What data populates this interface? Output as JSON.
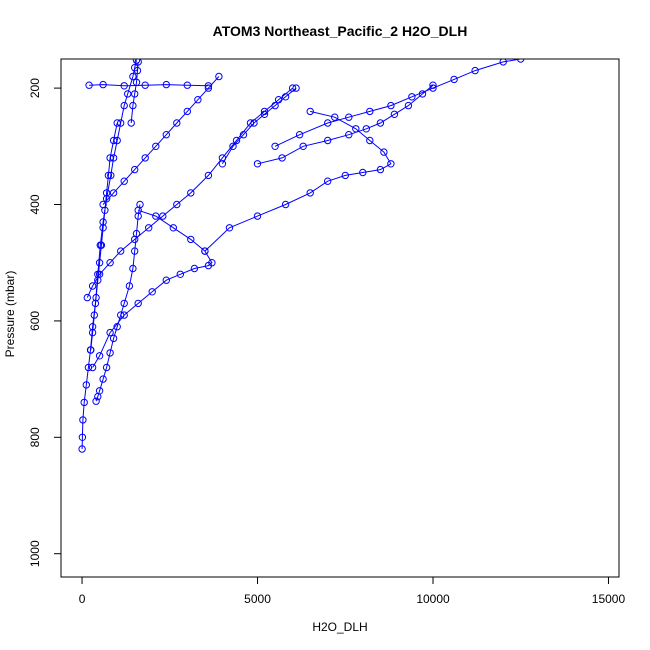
{
  "chart_data": {
    "type": "scatter",
    "title": "ATOM3 Northeast_Pacific_2 H2O_DLH",
    "xlabel": "H2O_DLH",
    "ylabel": "Pressure (mbar)",
    "xlim": [
      -600,
      15300
    ],
    "ylim": [
      1040,
      150
    ],
    "y_reversed": true,
    "grid": false,
    "xticks": [
      0,
      5000,
      10000,
      15000
    ],
    "yticks": [
      200,
      400,
      600,
      800,
      1000
    ],
    "series_color": "#0000ff",
    "marker": "open-circle",
    "connected": true,
    "series": [
      {
        "x": [
          0,
          10,
          25,
          60,
          120,
          180,
          240,
          300,
          380,
          450,
          520,
          600,
          700,
          820,
          900,
          1000,
          1100,
          1200,
          1300,
          1450,
          1500,
          1550
        ],
        "y": [
          820,
          800,
          770,
          740,
          710,
          680,
          650,
          610,
          570,
          520,
          470,
          430,
          390,
          350,
          320,
          290,
          260,
          230,
          210,
          180,
          165,
          152
        ]
      },
      {
        "x": [
          400,
          450,
          500,
          600,
          700,
          800,
          900,
          1000,
          1100,
          1200,
          1350,
          1450,
          1500,
          1550,
          1600,
          1650
        ],
        "y": [
          738,
          730,
          720,
          700,
          680,
          655,
          630,
          610,
          590,
          570,
          540,
          510,
          480,
          450,
          420,
          400
        ]
      },
      {
        "x": [
          300,
          500,
          800,
          1200,
          1600,
          2000,
          2400,
          2800,
          3200,
          3600,
          3700,
          3500,
          3100,
          2600,
          2100,
          1600
        ],
        "y": [
          680,
          660,
          620,
          590,
          570,
          550,
          530,
          520,
          510,
          505,
          500,
          480,
          460,
          440,
          420,
          410
        ]
      },
      {
        "x": [
          150,
          300,
          500,
          800,
          1100,
          1500,
          1900,
          2300,
          2700,
          3100,
          3600,
          4000,
          4400,
          4800,
          5200,
          5600,
          6000
        ],
        "y": [
          560,
          540,
          520,
          500,
          480,
          460,
          440,
          420,
          400,
          380,
          350,
          320,
          290,
          260,
          240,
          220,
          200
        ]
      },
      {
        "x": [
          3500,
          4200,
          5000,
          5800,
          6500,
          7000,
          7500,
          8000,
          8500,
          8800,
          8600,
          8200,
          7800,
          7200,
          6500
        ],
        "y": [
          480,
          440,
          420,
          400,
          380,
          360,
          350,
          345,
          340,
          330,
          310,
          290,
          270,
          250,
          240
        ]
      },
      {
        "x": [
          5500,
          6200,
          7000,
          7600,
          8200,
          8800,
          9400,
          10000,
          10600,
          11200,
          12000,
          12500
        ],
        "y": [
          300,
          280,
          260,
          250,
          240,
          230,
          215,
          200,
          185,
          170,
          155,
          150
        ]
      },
      {
        "x": [
          5000,
          5700,
          6300,
          7000,
          7600,
          8100,
          8500,
          8900,
          9300,
          9700,
          10000
        ],
        "y": [
          330,
          320,
          300,
          290,
          280,
          270,
          260,
          245,
          230,
          210,
          195
        ]
      },
      {
        "x": [
          600,
          900,
          1200,
          1500,
          1800,
          2100,
          2400,
          2700,
          3000,
          3300,
          3600,
          3900
        ],
        "y": [
          400,
          380,
          360,
          340,
          320,
          300,
          280,
          260,
          240,
          220,
          200,
          180
        ]
      },
      {
        "x": [
          250,
          300,
          350,
          400,
          450,
          500,
          550,
          600,
          650,
          700,
          750,
          800,
          900,
          1000
        ],
        "y": [
          650,
          620,
          590,
          560,
          530,
          500,
          470,
          440,
          410,
          380,
          350,
          320,
          290,
          260
        ]
      },
      {
        "x": [
          200,
          600,
          1200,
          1800,
          2400,
          3000,
          3600
        ],
        "y": [
          195,
          194,
          196,
          195,
          194,
          195,
          196
        ]
      },
      {
        "x": [
          1400,
          1450,
          1500,
          1550,
          1580,
          1600
        ],
        "y": [
          260,
          230,
          210,
          190,
          170,
          155
        ]
      },
      {
        "x": [
          4000,
          4300,
          4600,
          4900,
          5200,
          5500,
          5800,
          6100
        ],
        "y": [
          330,
          300,
          280,
          260,
          245,
          230,
          215,
          200
        ]
      }
    ]
  }
}
